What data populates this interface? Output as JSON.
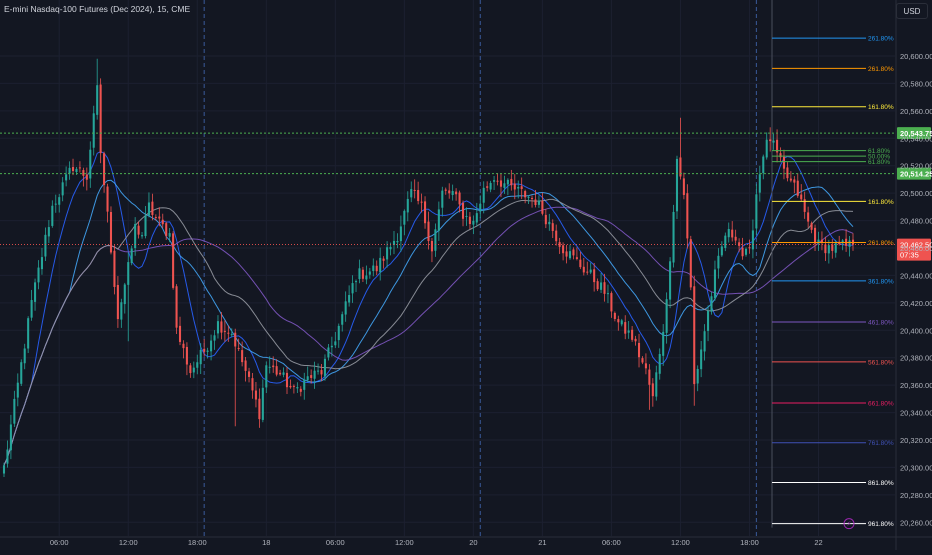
{
  "header": {
    "title": "E-mini Nasdaq-100 Futures (Dec 2024), 15, CME",
    "currency": "USD"
  },
  "colors": {
    "background": "#131722",
    "up": "#26a69a",
    "down": "#ef5350",
    "grid": "#1c2030",
    "session_sep": "#3a5a9a",
    "horizontal_dotted": "#4caf50",
    "last_price": "#ef5350",
    "ma1": "#2962ff",
    "ma2": "#42a5f5",
    "ma3": "#7e57c2",
    "ma4": "#9598a1"
  },
  "chart_data": {
    "type": "candlestick",
    "ylim": [
      20250,
      20635
    ],
    "y_ticks": [
      "20,600.00",
      "20,580.00",
      "20,560.00",
      "20,540.00",
      "20,520.00",
      "20,500.00",
      "20,480.00",
      "20,460.00",
      "20,440.00",
      "20,420.00",
      "20,400.00",
      "20,380.00",
      "20,360.00",
      "20,340.00",
      "20,320.00",
      "20,300.00",
      "20,280.00",
      "20,260.00"
    ],
    "x_ticks": [
      {
        "label": "06:00",
        "i": 16
      },
      {
        "label": "12:00",
        "i": 36
      },
      {
        "label": "18:00",
        "i": 56
      },
      {
        "label": "18",
        "i": 76
      },
      {
        "label": "06:00",
        "i": 96
      },
      {
        "label": "12:00",
        "i": 116
      },
      {
        "label": "20",
        "i": 136
      },
      {
        "label": "21",
        "i": 156
      },
      {
        "label": "06:00",
        "i": 176
      },
      {
        "label": "12:00",
        "i": 196
      },
      {
        "label": "18:00",
        "i": 216
      },
      {
        "label": "22",
        "i": 236
      }
    ],
    "session_separators": [
      58,
      138,
      218
    ],
    "horizontal_levels": [
      {
        "value": 20543.75,
        "label": "20,543.75",
        "color": "#4caf50"
      },
      {
        "value": 20514.25,
        "label": "20,514.25",
        "color": "#4caf50"
      }
    ],
    "last_price": {
      "value": 20462.5,
      "label": "20,462.50",
      "countdown": "07:35"
    },
    "fib_levels": [
      {
        "label": "261.80%",
        "value": 20613,
        "color": "#2196f3"
      },
      {
        "label": "261.80%",
        "value": 20591,
        "color": "#ff9800"
      },
      {
        "label": "161.80%",
        "value": 20563,
        "color": "#ffeb3b"
      },
      {
        "label": "61.80%",
        "value": 20531,
        "color": "#4caf50"
      },
      {
        "label": "50.00%",
        "value": 20527,
        "color": "#4caf50"
      },
      {
        "label": "61.80%",
        "value": 20523,
        "color": "#4caf50"
      },
      {
        "label": "161.80%",
        "value": 20494,
        "color": "#ffeb3b"
      },
      {
        "label": "261.80%",
        "value": 20464,
        "color": "#ff9800"
      },
      {
        "label": "361.80%",
        "value": 20436,
        "color": "#2196f3"
      },
      {
        "label": "461.80%",
        "value": 20406,
        "color": "#7e57c2"
      },
      {
        "label": "561.80%",
        "value": 20377,
        "color": "#ef5350"
      },
      {
        "label": "661.80%",
        "value": 20347,
        "color": "#e91e63"
      },
      {
        "label": "761.80%",
        "value": 20318,
        "color": "#3f51b5"
      },
      {
        "label": "861.80%",
        "value": 20289,
        "color": "#ffffff"
      },
      {
        "label": "961.80%",
        "value": 20259,
        "color": "#ffffff"
      }
    ],
    "series": [
      {
        "name": "",
        "keypoints": [
          [
            0,
            20300
          ],
          [
            8,
            20420
          ],
          [
            14,
            20490
          ],
          [
            20,
            20520
          ],
          [
            24,
            20512
          ],
          [
            27,
            20575
          ],
          [
            28,
            20530
          ],
          [
            31,
            20460
          ],
          [
            33,
            20410
          ],
          [
            36,
            20445
          ],
          [
            38,
            20475
          ],
          [
            40,
            20470
          ],
          [
            42,
            20490
          ],
          [
            45,
            20478
          ],
          [
            48,
            20470
          ],
          [
            50,
            20400
          ],
          [
            54,
            20370
          ],
          [
            58,
            20385
          ],
          [
            62,
            20405
          ],
          [
            66,
            20398
          ],
          [
            70,
            20370
          ],
          [
            74,
            20340
          ],
          [
            76,
            20375
          ],
          [
            80,
            20368
          ],
          [
            84,
            20355
          ],
          [
            88,
            20365
          ],
          [
            92,
            20370
          ],
          [
            96,
            20395
          ],
          [
            102,
            20440
          ],
          [
            108,
            20445
          ],
          [
            114,
            20470
          ],
          [
            118,
            20500
          ],
          [
            121,
            20490
          ],
          [
            124,
            20460
          ],
          [
            127,
            20500
          ],
          [
            130,
            20500
          ],
          [
            133,
            20485
          ],
          [
            136,
            20478
          ],
          [
            139,
            20502
          ],
          [
            142,
            20512
          ],
          [
            146,
            20505
          ],
          [
            150,
            20500
          ],
          [
            154,
            20495
          ],
          [
            158,
            20478
          ],
          [
            162,
            20460
          ],
          [
            166,
            20450
          ],
          [
            170,
            20440
          ],
          [
            174,
            20428
          ],
          [
            178,
            20405
          ],
          [
            182,
            20395
          ],
          [
            186,
            20370
          ],
          [
            188,
            20350
          ],
          [
            192,
            20420
          ],
          [
            195,
            20525
          ],
          [
            197,
            20500
          ],
          [
            199,
            20430
          ],
          [
            200,
            20360
          ],
          [
            203,
            20400
          ],
          [
            206,
            20440
          ],
          [
            209,
            20470
          ],
          [
            212,
            20470
          ],
          [
            214,
            20455
          ],
          [
            216,
            20455
          ],
          [
            218,
            20500
          ],
          [
            220,
            20530
          ],
          [
            222,
            20540
          ],
          [
            226,
            20515
          ],
          [
            230,
            20500
          ],
          [
            233,
            20478
          ],
          [
            236,
            20462
          ],
          [
            240,
            20460
          ],
          [
            246,
            20462
          ]
        ],
        "moving_averages": [
          {
            "period": 9,
            "color": "#2962ff"
          },
          {
            "period": 20,
            "color": "#42a5f5"
          },
          {
            "period": 50,
            "color": "#7e57c2"
          },
          {
            "period": 34,
            "color": "#9598a1"
          }
        ]
      }
    ]
  }
}
